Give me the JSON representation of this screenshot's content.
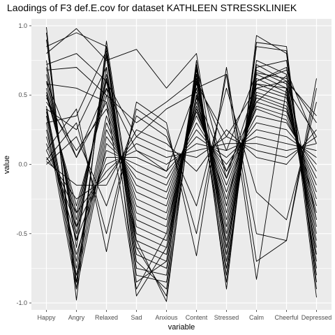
{
  "chart_data": {
    "type": "line",
    "title": "Laodings of F3 def.E.cov for dataset KATHLEEN STRESSKLINIEK",
    "xlabel": "variable",
    "ylabel": "value",
    "categories": [
      "Happy",
      "Angry",
      "Relaxed",
      "Sad",
      "Anxious",
      "Content",
      "Stressed",
      "Calm",
      "Cheerful",
      "Depressed"
    ],
    "ylim": [
      -1.05,
      1.05
    ],
    "yticks": [
      1.0,
      0.5,
      0.0,
      -0.5,
      -1.0
    ],
    "ytick_labels": [
      "1.0",
      "0.5",
      "0.0",
      "-0.5",
      "-1.0"
    ],
    "grid": true,
    "panel_color": "#ebebeb",
    "line_color": "#000000",
    "series": [
      {
        "values": [
          0.99,
          -0.98,
          0.89,
          -0.55,
          -0.99,
          0.7,
          -0.9,
          0.93,
          0.8,
          -0.96
        ]
      },
      {
        "values": [
          0.95,
          -0.9,
          0.85,
          -0.6,
          -0.95,
          0.65,
          -0.85,
          0.88,
          0.85,
          -0.9
        ]
      },
      {
        "values": [
          0.9,
          -0.85,
          0.8,
          -0.7,
          -0.9,
          0.75,
          -0.8,
          0.85,
          0.82,
          -0.85
        ]
      },
      {
        "values": [
          0.85,
          0.95,
          0.85,
          -0.8,
          -0.85,
          0.6,
          -0.75,
          0.7,
          0.75,
          -0.8
        ]
      },
      {
        "values": [
          0.8,
          0.98,
          0.75,
          0.83,
          0.55,
          0.8,
          -0.6,
          0.6,
          0.7,
          -0.7
        ]
      },
      {
        "values": [
          0.75,
          -0.6,
          0.78,
          -0.75,
          -0.8,
          0.72,
          -0.7,
          0.75,
          0.65,
          -0.75
        ]
      },
      {
        "values": [
          0.7,
          -0.55,
          0.7,
          -0.65,
          -0.75,
          0.68,
          -0.65,
          0.72,
          0.6,
          -0.65
        ]
      },
      {
        "values": [
          0.65,
          -0.5,
          0.65,
          -0.6,
          -0.7,
          0.65,
          -0.6,
          0.68,
          0.58,
          -0.6
        ]
      },
      {
        "values": [
          0.6,
          -0.45,
          0.62,
          -0.55,
          -0.65,
          0.62,
          -0.55,
          0.65,
          0.55,
          -0.55
        ]
      },
      {
        "values": [
          0.55,
          -0.4,
          0.6,
          -0.5,
          -0.6,
          0.6,
          -0.5,
          0.62,
          0.52,
          -0.5
        ]
      },
      {
        "values": [
          0.52,
          -0.35,
          0.55,
          -0.45,
          -0.55,
          0.55,
          -0.45,
          0.58,
          0.5,
          -0.45
        ]
      },
      {
        "values": [
          0.5,
          -0.3,
          0.5,
          -0.4,
          -0.5,
          0.5,
          -0.4,
          0.55,
          0.48,
          -0.4
        ]
      },
      {
        "values": [
          0.48,
          0.05,
          0.45,
          -0.35,
          -0.45,
          0.48,
          -0.35,
          0.52,
          0.45,
          -0.35
        ]
      },
      {
        "values": [
          0.45,
          0.1,
          0.4,
          -0.3,
          -0.4,
          0.45,
          -0.3,
          0.5,
          0.42,
          -0.3
        ]
      },
      {
        "values": [
          0.42,
          -0.7,
          0.35,
          -0.25,
          -0.35,
          0.42,
          -0.25,
          0.48,
          0.4,
          -0.25
        ]
      },
      {
        "values": [
          0.4,
          -0.75,
          0.3,
          -0.2,
          -0.3,
          0.4,
          -0.2,
          0.45,
          0.38,
          -0.2
        ]
      },
      {
        "values": [
          0.38,
          -0.8,
          0.25,
          -0.15,
          -0.25,
          0.38,
          -0.15,
          0.42,
          0.35,
          -0.15
        ]
      },
      {
        "values": [
          0.35,
          -0.85,
          0.2,
          -0.1,
          -0.2,
          0.35,
          -0.1,
          0.4,
          0.32,
          -0.1
        ]
      },
      {
        "values": [
          0.3,
          -0.9,
          0.15,
          -0.05,
          -0.15,
          0.3,
          -0.05,
          0.35,
          0.3,
          -0.05
        ]
      },
      {
        "values": [
          0.25,
          -0.65,
          0.1,
          0.0,
          -0.1,
          0.25,
          0.0,
          0.3,
          0.25,
          0.0
        ]
      },
      {
        "values": [
          0.2,
          -0.55,
          0.05,
          0.05,
          -0.05,
          0.2,
          0.05,
          0.25,
          0.2,
          0.05
        ]
      },
      {
        "values": [
          0.15,
          -0.45,
          0.0,
          0.1,
          0.0,
          0.15,
          0.1,
          0.2,
          0.15,
          0.1
        ]
      },
      {
        "values": [
          0.1,
          -0.35,
          -0.05,
          0.15,
          0.05,
          0.1,
          0.15,
          0.15,
          0.1,
          0.15
        ]
      },
      {
        "values": [
          0.05,
          -0.25,
          -0.1,
          0.2,
          0.1,
          0.05,
          0.2,
          0.1,
          0.05,
          0.2
        ]
      },
      {
        "values": [
          0.02,
          -0.15,
          -0.15,
          0.25,
          0.15,
          -0.05,
          0.25,
          0.05,
          0.0,
          0.25
        ]
      },
      {
        "values": [
          0.0,
          0.2,
          -0.3,
          0.35,
          0.2,
          -0.3,
          0.55,
          -0.2,
          -0.4,
          0.45
        ]
      },
      {
        "values": [
          0.03,
          0.3,
          -0.5,
          0.4,
          0.25,
          -0.5,
          0.65,
          -0.5,
          -0.55,
          0.55
        ]
      },
      {
        "values": [
          0.1,
          0.4,
          -0.63,
          0.45,
          0.3,
          -0.66,
          0.7,
          -0.7,
          -0.55,
          0.62
        ]
      },
      {
        "values": [
          0.6,
          0.05,
          0.55,
          0.1,
          -0.05,
          0.55,
          0.65,
          -0.83,
          0.55,
          0.2
        ]
      },
      {
        "values": [
          0.72,
          0.8,
          0.6,
          0.2,
          0.4,
          0.52,
          -0.3,
          0.6,
          0.68,
          0.15
        ]
      },
      {
        "values": [
          0.68,
          0.7,
          0.5,
          0.3,
          0.45,
          0.62,
          0.1,
          0.66,
          0.62,
          0.3
        ]
      },
      {
        "values": [
          0.58,
          0.55,
          0.45,
          -0.9,
          -0.5,
          0.58,
          0.2,
          0.55,
          0.6,
          0.35
        ]
      },
      {
        "values": [
          0.3,
          0.35,
          0.82,
          -0.95,
          -0.6,
          0.5,
          -0.05,
          0.45,
          0.64,
          -0.4
        ]
      },
      {
        "values": [
          0.4,
          0.25,
          0.7,
          -0.85,
          -0.7,
          0.7,
          -0.1,
          0.58,
          0.55,
          -0.65
        ]
      }
    ]
  }
}
